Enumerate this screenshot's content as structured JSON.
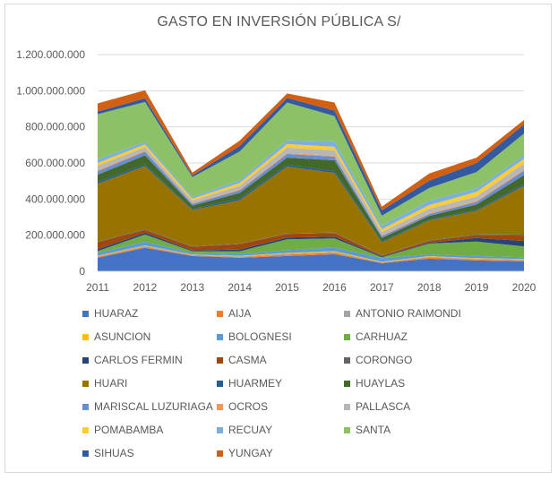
{
  "chart_data": {
    "type": "area",
    "stacked": true,
    "title": "GASTO EN INVERSIÓN PÚBLICA S/",
    "xlabel": "",
    "ylabel": "",
    "x": [
      "2011",
      "2012",
      "2013",
      "2014",
      "2015",
      "2016",
      "2017",
      "2018",
      "2019",
      "2020"
    ],
    "ylim": [
      0,
      1200000000
    ],
    "yticks": [
      0,
      200000000,
      400000000,
      600000000,
      800000000,
      1000000000,
      1200000000
    ],
    "ytick_labels": [
      "0",
      "200.000.000",
      "400.000.000",
      "600.000.000",
      "800.000.000",
      "1.000.000.000",
      "1.200.000.000"
    ],
    "grid": true,
    "legend_position": "bottom",
    "series": [
      {
        "name": "HUARAZ",
        "color": "#4472c4",
        "values": [
          75000000,
          130000000,
          85000000,
          75000000,
          85000000,
          95000000,
          45000000,
          70000000,
          60000000,
          55000000
        ]
      },
      {
        "name": "AIJA",
        "color": "#ed7d31",
        "values": [
          5000000,
          6000000,
          3000000,
          4000000,
          8000000,
          8000000,
          3000000,
          7000000,
          6000000,
          6000000
        ]
      },
      {
        "name": "ANTONIO RAIMONDI",
        "color": "#a5a5a5",
        "values": [
          4000000,
          5000000,
          3000000,
          4000000,
          5000000,
          5000000,
          3000000,
          4000000,
          4000000,
          4000000
        ]
      },
      {
        "name": "ASUNCION",
        "color": "#ffc000",
        "values": [
          3000000,
          3000000,
          2000000,
          3000000,
          4000000,
          4000000,
          2000000,
          3000000,
          3000000,
          3000000
        ]
      },
      {
        "name": "BOLOGNESI",
        "color": "#5b9bd5",
        "values": [
          15000000,
          20000000,
          8000000,
          10000000,
          15000000,
          20000000,
          20000000,
          10000000,
          12000000,
          10000000
        ]
      },
      {
        "name": "CARHUAZ",
        "color": "#70ad47",
        "values": [
          10000000,
          40000000,
          10000000,
          15000000,
          60000000,
          50000000,
          5000000,
          60000000,
          80000000,
          60000000
        ]
      },
      {
        "name": "CARLOS FERMIN",
        "color": "#264478",
        "values": [
          10000000,
          10000000,
          5000000,
          10000000,
          10000000,
          10000000,
          5000000,
          5000000,
          20000000,
          30000000
        ]
      },
      {
        "name": "CASMA",
        "color": "#9e480e",
        "values": [
          40000000,
          15000000,
          20000000,
          30000000,
          20000000,
          20000000,
          5000000,
          10000000,
          15000000,
          30000000
        ]
      },
      {
        "name": "CORONGO",
        "color": "#636363",
        "values": [
          3000000,
          4000000,
          3000000,
          3000000,
          3000000,
          3000000,
          2000000,
          3000000,
          5000000,
          5000000
        ]
      },
      {
        "name": "HUARI",
        "color": "#997300",
        "values": [
          320000000,
          350000000,
          200000000,
          240000000,
          370000000,
          330000000,
          70000000,
          110000000,
          130000000,
          270000000
        ]
      },
      {
        "name": "HUARMEY",
        "color": "#255e91",
        "values": [
          10000000,
          10000000,
          5000000,
          10000000,
          10000000,
          10000000,
          5000000,
          5000000,
          5000000,
          10000000
        ]
      },
      {
        "name": "HUAYLAS",
        "color": "#43682b",
        "values": [
          40000000,
          50000000,
          20000000,
          30000000,
          40000000,
          60000000,
          20000000,
          20000000,
          30000000,
          50000000
        ]
      },
      {
        "name": "MARISCAL LUZURIAGA",
        "color": "#698ed0",
        "values": [
          20000000,
          20000000,
          10000000,
          15000000,
          20000000,
          20000000,
          10000000,
          10000000,
          15000000,
          25000000
        ]
      },
      {
        "name": "OCROS",
        "color": "#f1975a",
        "values": [
          5000000,
          5000000,
          3000000,
          5000000,
          5000000,
          5000000,
          3000000,
          5000000,
          5000000,
          5000000
        ]
      },
      {
        "name": "PALLASCA",
        "color": "#b7b7b7",
        "values": [
          25000000,
          20000000,
          15000000,
          20000000,
          30000000,
          30000000,
          20000000,
          25000000,
          25000000,
          35000000
        ]
      },
      {
        "name": "POMABAMBA",
        "color": "#ffcd33",
        "values": [
          15000000,
          15000000,
          10000000,
          15000000,
          20000000,
          20000000,
          15000000,
          20000000,
          25000000,
          25000000
        ]
      },
      {
        "name": "RECUAY",
        "color": "#7cafdd",
        "values": [
          20000000,
          15000000,
          10000000,
          15000000,
          20000000,
          30000000,
          20000000,
          25000000,
          20000000,
          20000000
        ]
      },
      {
        "name": "SANTA",
        "color": "#8cc168",
        "values": [
          250000000,
          220000000,
          110000000,
          160000000,
          210000000,
          140000000,
          55000000,
          70000000,
          90000000,
          120000000
        ]
      },
      {
        "name": "SIHUAS",
        "color": "#335aa1",
        "values": [
          15000000,
          20000000,
          10000000,
          30000000,
          25000000,
          30000000,
          30000000,
          40000000,
          50000000,
          50000000
        ]
      },
      {
        "name": "YUNGAY",
        "color": "#d26012",
        "values": [
          45000000,
          45000000,
          15000000,
          30000000,
          25000000,
          45000000,
          20000000,
          40000000,
          30000000,
          25000000
        ]
      }
    ]
  }
}
